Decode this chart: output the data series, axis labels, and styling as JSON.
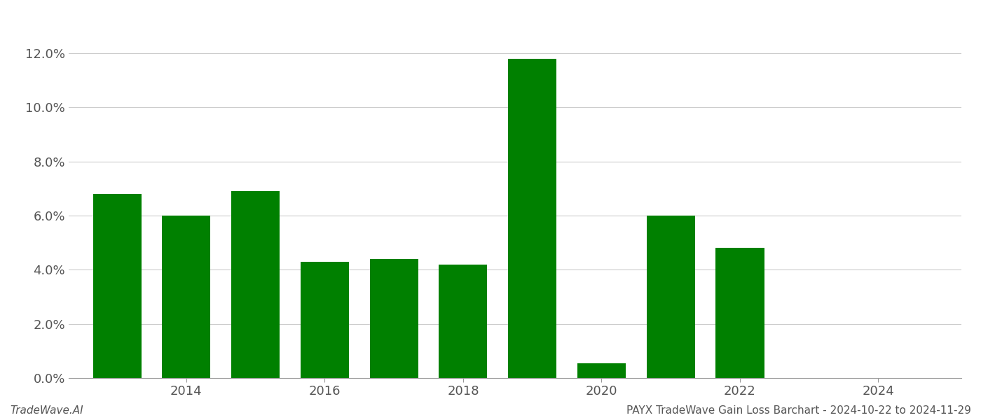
{
  "years": [
    2013,
    2014,
    2015,
    2016,
    2017,
    2018,
    2019,
    2020,
    2021,
    2022,
    2023
  ],
  "values": [
    0.068,
    0.06,
    0.069,
    0.043,
    0.044,
    0.042,
    0.118,
    0.0055,
    0.06,
    0.048,
    0.0
  ],
  "bar_color": "#008000",
  "background_color": "#ffffff",
  "grid_color": "#cccccc",
  "footer_left": "TradeWave.AI",
  "footer_right": "PAYX TradeWave Gain Loss Barchart - 2024-10-22 to 2024-11-29",
  "ylim": [
    0,
    0.135
  ],
  "yticks": [
    0.0,
    0.02,
    0.04,
    0.06,
    0.08,
    0.1,
    0.12
  ],
  "xlim": [
    2012.3,
    2025.2
  ],
  "xticks": [
    2014,
    2016,
    2018,
    2020,
    2022,
    2024
  ],
  "bar_width": 0.7,
  "tick_fontsize": 13,
  "footer_fontsize": 11
}
